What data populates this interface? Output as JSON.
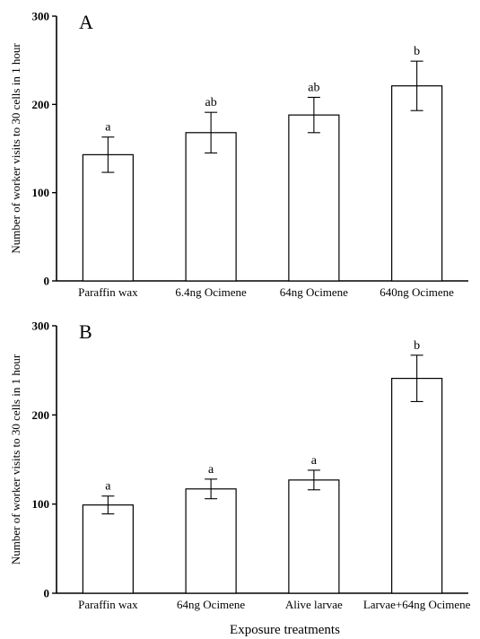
{
  "chart_data": [
    {
      "type": "bar",
      "panel_label": "A",
      "categories": [
        "Paraffin wax",
        "6.4ng Ocimene",
        "64ng Ocimene",
        "640ng Ocimene"
      ],
      "values": [
        143,
        168,
        188,
        221
      ],
      "error": [
        20,
        23,
        20,
        28
      ],
      "significance": [
        "a",
        "ab",
        "ab",
        "b"
      ],
      "ylabel": "Number of worker visits to 30 cells in 1 hour",
      "xlabel": "",
      "ylim": [
        0,
        300
      ],
      "yticks": [
        "0",
        "100",
        "200",
        "300"
      ],
      "grid": false,
      "bar_fill": "#ffffff",
      "bar_stroke": "#000000"
    },
    {
      "type": "bar",
      "panel_label": "B",
      "categories": [
        "Paraffin wax",
        "64ng Ocimene",
        "Alive larvae",
        "Larvae+64ng Ocimene"
      ],
      "values": [
        99,
        117,
        127,
        241
      ],
      "error": [
        10,
        11,
        11,
        26
      ],
      "significance": [
        "a",
        "a",
        "a",
        "b"
      ],
      "ylabel": "Number of worker visits to 30 cells in 1 hour",
      "xlabel": "Exposure treatments",
      "ylim": [
        0,
        300
      ],
      "yticks": [
        "0",
        "100",
        "200",
        "300"
      ],
      "grid": false,
      "bar_fill": "#ffffff",
      "bar_stroke": "#000000"
    }
  ]
}
